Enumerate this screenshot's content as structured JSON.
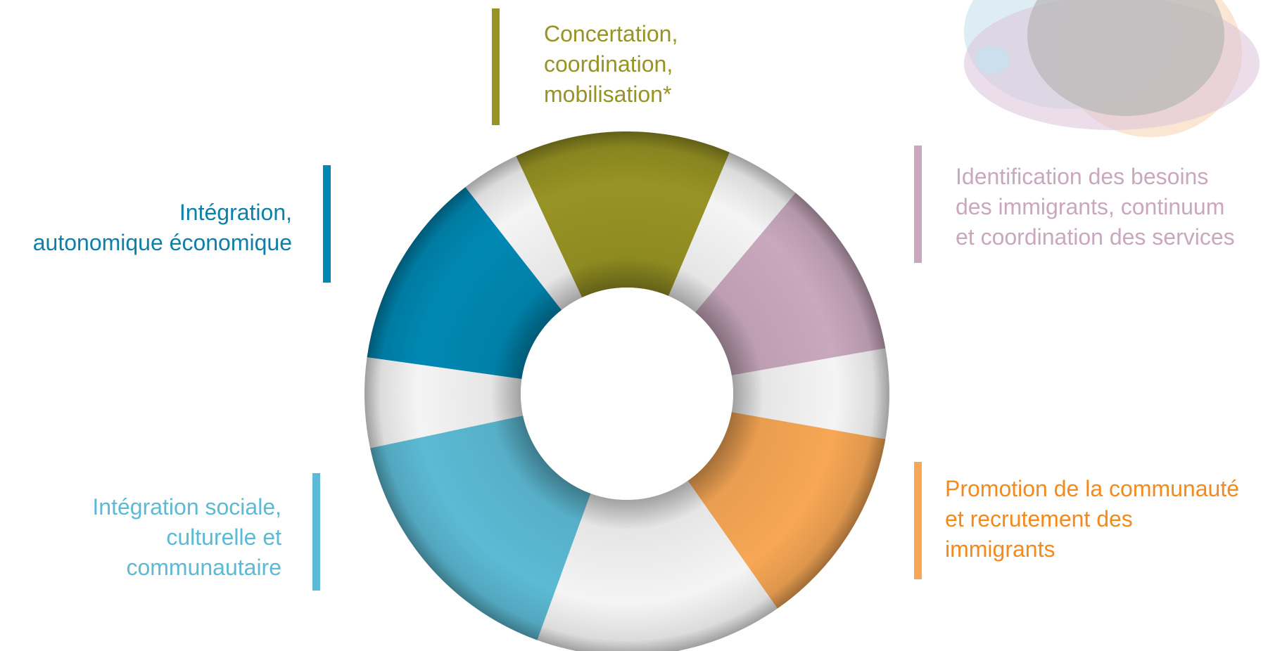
{
  "diagram": {
    "segments": [
      {
        "id": "concertation",
        "color": "#979324",
        "lines": [
          "Concertation,",
          "coordination,",
          "mobilisation*"
        ]
      },
      {
        "id": "identification",
        "color": "#c9a8be",
        "lines": [
          "Identification des besoins",
          "des immigrants, continuum",
          "et coordination des services"
        ]
      },
      {
        "id": "promotion",
        "color": "#f7a755",
        "text_color": "#f38a1e",
        "lines": [
          "Promotion de la communauté",
          "et recrutement des",
          "immigrants"
        ]
      },
      {
        "id": "integration-sociale",
        "color": "#5cbad4",
        "lines": [
          "Intégration sociale,",
          "culturelle et",
          "communautaire"
        ]
      },
      {
        "id": "integration-economique",
        "color": "#0088b3",
        "text_color": "#0e7fa8",
        "lines": [
          "Intégration,",
          "autonomique économique"
        ]
      }
    ],
    "ring_base_color": "#f4f4f4"
  }
}
